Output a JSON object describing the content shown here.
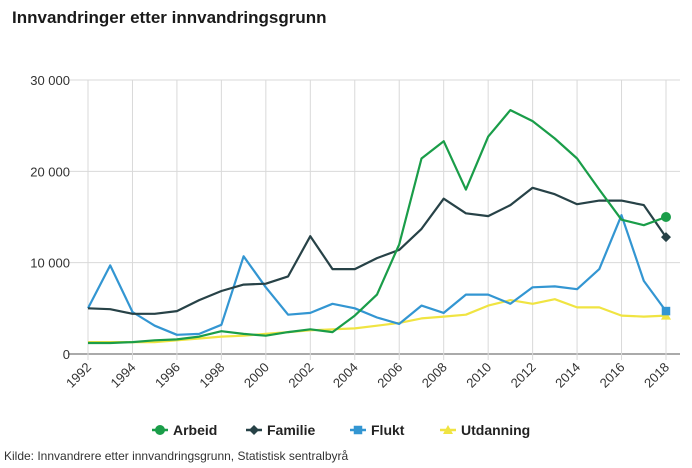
{
  "title": "Innvandringer etter innvandringsgrunn",
  "source": "Kilde: Innvandrere etter innvandringsgrunn, Statistisk sentralbyrå",
  "chart_data": {
    "type": "line",
    "title": "Innvandringer etter innvandringsgrunn",
    "xlabel": "",
    "ylabel": "",
    "ylim": [
      0,
      30000
    ],
    "yticks": [
      0,
      10000,
      20000,
      30000
    ],
    "ytick_labels": [
      "0",
      "10 000",
      "20 000",
      "30 000"
    ],
    "x": [
      1992,
      1993,
      1994,
      1995,
      1996,
      1997,
      1998,
      1999,
      2000,
      2001,
      2002,
      2003,
      2004,
      2005,
      2006,
      2007,
      2008,
      2009,
      2010,
      2011,
      2012,
      2013,
      2014,
      2015,
      2016,
      2017,
      2018
    ],
    "xtick_labels": [
      "1992",
      "1994",
      "1996",
      "1998",
      "2000",
      "2002",
      "2004",
      "2006",
      "2008",
      "2010",
      "2012",
      "2014",
      "2016",
      "2018"
    ],
    "legend_position": "bottom",
    "series": [
      {
        "name": "Arbeid",
        "color": "#1a9d49",
        "marker": "circle",
        "values": [
          1200,
          1200,
          1300,
          1500,
          1600,
          1900,
          2500,
          2200,
          2000,
          2400,
          2700,
          2400,
          4200,
          6500,
          12000,
          21400,
          23300,
          18000,
          23800,
          26700,
          25500,
          23600,
          21400,
          18000,
          14700,
          14100,
          15000
        ]
      },
      {
        "name": "Familie",
        "color": "#274247",
        "marker": "diamond",
        "values": [
          5000,
          4900,
          4400,
          4400,
          4700,
          5900,
          6900,
          7600,
          7700,
          8500,
          12900,
          9300,
          9300,
          10500,
          11400,
          13700,
          17000,
          15400,
          15100,
          16300,
          18200,
          17500,
          16400,
          16800,
          16800,
          16300,
          12800
        ]
      },
      {
        "name": "Flukt",
        "color": "#3396d2",
        "marker": "square",
        "values": [
          5000,
          9700,
          4600,
          3100,
          2100,
          2200,
          3200,
          10700,
          7300,
          4300,
          4500,
          5500,
          5000,
          4000,
          3300,
          5300,
          4500,
          6500,
          6500,
          5500,
          7300,
          7400,
          7100,
          9300,
          15200,
          8000,
          4700
        ]
      },
      {
        "name": "Utdanning",
        "color": "#f0e442",
        "marker": "triangle",
        "values": [
          1300,
          1300,
          1300,
          1300,
          1500,
          1700,
          1900,
          2000,
          2200,
          2400,
          2600,
          2700,
          2800,
          3100,
          3400,
          3900,
          4100,
          4300,
          5300,
          5900,
          5500,
          6000,
          5100,
          5100,
          4200,
          4100,
          4200
        ]
      }
    ]
  }
}
